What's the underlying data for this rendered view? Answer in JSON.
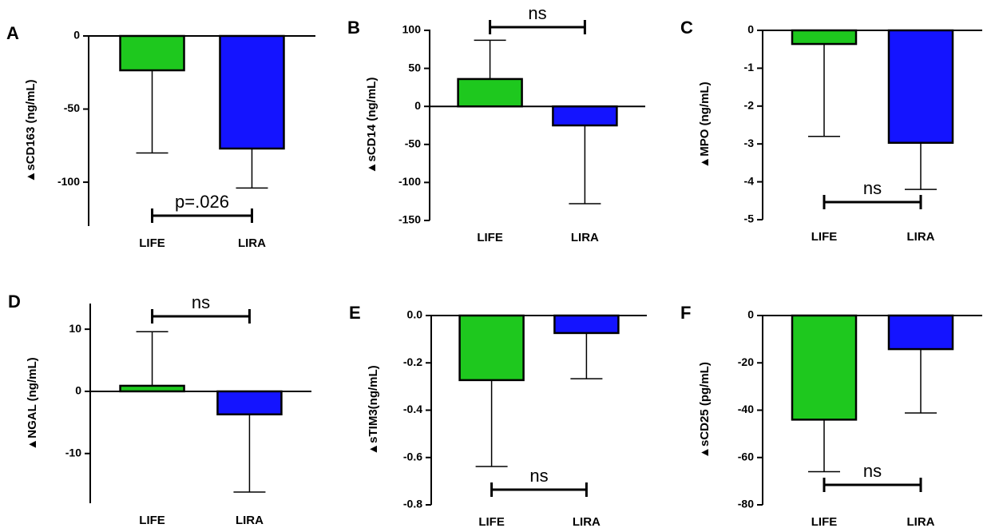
{
  "chart_data": [
    {
      "type": "bar",
      "panel": "A",
      "ylabel": "▲sCD163 (ng/mL)",
      "categories": [
        "LIFE",
        "LIRA"
      ],
      "values": [
        -23.5,
        -77
      ],
      "errors": [
        56.5,
        27
      ],
      "colors": [
        "#1ec81e",
        "#1414ff"
      ],
      "ylim": [
        -130,
        0
      ],
      "yticks": [
        0,
        -50,
        -100
      ],
      "annotation": "p=.026"
    },
    {
      "type": "bar",
      "panel": "B",
      "ylabel": "▲sCD14 (ng/mL)",
      "categories": [
        "LIFE",
        "LIRA"
      ],
      "values": [
        36,
        -25
      ],
      "errors": [
        51,
        103
      ],
      "colors": [
        "#1ec81e",
        "#1414ff"
      ],
      "ylim": [
        -150,
        100
      ],
      "yticks": [
        100,
        50,
        0,
        -50,
        -100,
        -150
      ],
      "annotation": "ns"
    },
    {
      "type": "bar",
      "panel": "C",
      "ylabel": "▲MPO (ng/mL)",
      "categories": [
        "LIFE",
        "LIRA"
      ],
      "values": [
        -0.36,
        -2.97
      ],
      "errors": [
        2.44,
        1.23
      ],
      "colors": [
        "#1ec81e",
        "#1414ff"
      ],
      "ylim": [
        -5,
        0
      ],
      "yticks": [
        0,
        -1,
        -2,
        -3,
        -4,
        -5
      ],
      "annotation": "ns"
    },
    {
      "type": "bar",
      "panel": "D",
      "ylabel": "▲NGAL (ng/mL)",
      "categories": [
        "LIFE",
        "LIRA"
      ],
      "values": [
        0.9,
        -3.7
      ],
      "errors": [
        8.7,
        12.5
      ],
      "colors": [
        "#1ec81e",
        "#1414ff"
      ],
      "ylim": [
        -18,
        14
      ],
      "yticks": [
        10,
        0,
        -10
      ],
      "annotation": "ns"
    },
    {
      "type": "bar",
      "panel": "E",
      "ylabel": "▲sTIM3(ng/mL)",
      "categories": [
        "LIFE",
        "LIRA"
      ],
      "values": [
        -0.273,
        -0.074
      ],
      "errors": [
        0.365,
        0.193
      ],
      "colors": [
        "#1ec81e",
        "#1414ff"
      ],
      "ylim": [
        -0.8,
        0
      ],
      "yticks": [
        {
          "value": 0,
          "label": "0.0"
        },
        -0.2,
        -0.4,
        -0.6,
        -0.8
      ],
      "annotation": "ns"
    },
    {
      "type": "bar",
      "panel": "F",
      "ylabel": "▲sCD25 (pg/mL)",
      "categories": [
        "LIFE",
        "LIRA"
      ],
      "values": [
        -44,
        -14.2
      ],
      "errors": [
        22,
        27
      ],
      "colors": [
        "#1ec81e",
        "#1414ff"
      ],
      "ylim": [
        -80,
        0
      ],
      "yticks": [
        0,
        -20,
        -40,
        -60,
        -80
      ],
      "annotation": "ns"
    }
  ]
}
